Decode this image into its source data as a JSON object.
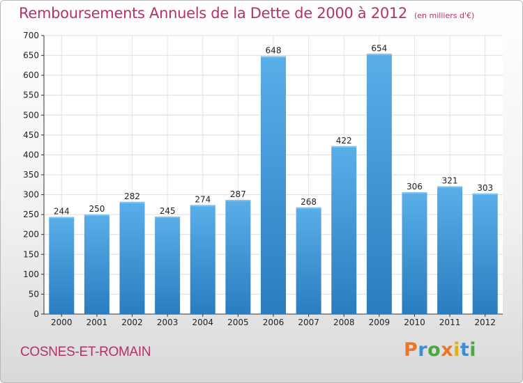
{
  "title": "Remboursements Annuels de la Dette de 2000 à 2012",
  "unit": "(en milliers d'€)",
  "commune": "COSNES-ET-ROMAIN",
  "logo": {
    "text": "Proxiti",
    "colors": [
      "#e8772e",
      "#3b8fd8",
      "#4aa83c",
      "#e8772e",
      "#d8b21f",
      "#3b8fd8",
      "#4aa83c"
    ]
  },
  "colors": {
    "title": "#b5306c",
    "bar_top": "#5aaee8",
    "bar_bottom": "#2a7dc0"
  },
  "chart_data": {
    "type": "bar",
    "categories": [
      "2000",
      "2001",
      "2002",
      "2003",
      "2004",
      "2005",
      "2006",
      "2007",
      "2008",
      "2009",
      "2010",
      "2011",
      "2012"
    ],
    "values": [
      244,
      250,
      282,
      245,
      274,
      287,
      648,
      268,
      422,
      654,
      306,
      321,
      303
    ],
    "yticks": [
      0,
      50,
      100,
      150,
      200,
      250,
      300,
      350,
      400,
      450,
      500,
      550,
      600,
      650,
      700
    ],
    "ylim": [
      0,
      700
    ],
    "grid": true,
    "title": "Remboursements Annuels de la Dette de 2000 à 2012",
    "xlabel": "",
    "ylabel": ""
  }
}
